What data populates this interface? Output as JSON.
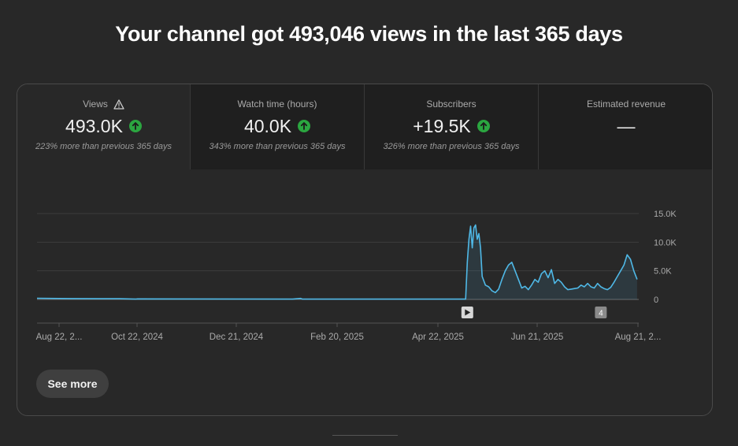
{
  "headline": "Your channel got 493,046 views in the last 365 days",
  "tabs": [
    {
      "label": "Views",
      "value": "493.0K",
      "delta": "223% more than previous 365 days",
      "trend": "up",
      "warning": true,
      "selected": true
    },
    {
      "label": "Watch time (hours)",
      "value": "40.0K",
      "delta": "343% more than previous 365 days",
      "trend": "up",
      "warning": false,
      "selected": false
    },
    {
      "label": "Subscribers",
      "value": "+19.5K",
      "delta": "326% more than previous 365 days",
      "trend": "up",
      "warning": false,
      "selected": false
    },
    {
      "label": "Estimated revenue",
      "value": "—",
      "delta": "",
      "trend": "none",
      "warning": false,
      "selected": false
    }
  ],
  "chart_data": {
    "type": "area",
    "title": "",
    "xlabel": "",
    "ylabel": "",
    "x_ticks": [
      "Aug 22, 2...",
      "Oct 22, 2024",
      "Dec 21, 2024",
      "Feb 20, 2025",
      "Apr 22, 2025",
      "Jun 21, 2025",
      "Aug 21, 2..."
    ],
    "y_ticks": [
      "15.0K",
      "10.0K",
      "5.0K",
      "0"
    ],
    "ylim": [
      0,
      15000
    ],
    "x_days": 365,
    "grid": true,
    "y_axis_side": "right",
    "series": [
      {
        "color": "#4fb8e6",
        "points": [
          [
            0,
            200
          ],
          [
            20,
            150
          ],
          [
            40,
            120
          ],
          [
            50,
            130
          ],
          [
            60,
            60
          ],
          [
            61,
            100
          ],
          [
            100,
            80
          ],
          [
            155,
            50
          ],
          [
            160,
            180
          ],
          [
            161,
            60
          ],
          [
            200,
            50
          ],
          [
            260,
            50
          ],
          [
            261,
            6500
          ],
          [
            262,
            10500
          ],
          [
            263,
            12800
          ],
          [
            264,
            9000
          ],
          [
            265,
            12500
          ],
          [
            266,
            13000
          ],
          [
            267,
            10500
          ],
          [
            268,
            11500
          ],
          [
            269,
            9000
          ],
          [
            270,
            4000
          ],
          [
            272,
            2500
          ],
          [
            274,
            2200
          ],
          [
            276,
            1500
          ],
          [
            278,
            1200
          ],
          [
            280,
            1800
          ],
          [
            282,
            3500
          ],
          [
            284,
            5000
          ],
          [
            286,
            6000
          ],
          [
            288,
            6500
          ],
          [
            290,
            5000
          ],
          [
            292,
            3500
          ],
          [
            294,
            2000
          ],
          [
            296,
            2300
          ],
          [
            298,
            1700
          ],
          [
            300,
            2500
          ],
          [
            302,
            3500
          ],
          [
            304,
            3000
          ],
          [
            306,
            4500
          ],
          [
            308,
            5000
          ],
          [
            310,
            3800
          ],
          [
            312,
            5200
          ],
          [
            314,
            2800
          ],
          [
            316,
            3500
          ],
          [
            318,
            3000
          ],
          [
            320,
            2200
          ],
          [
            322,
            1700
          ],
          [
            324,
            1800
          ],
          [
            326,
            1900
          ],
          [
            328,
            2000
          ],
          [
            330,
            2500
          ],
          [
            332,
            2200
          ],
          [
            334,
            2800
          ],
          [
            336,
            2200
          ],
          [
            338,
            2000
          ],
          [
            340,
            2800
          ],
          [
            342,
            2200
          ],
          [
            344,
            1900
          ],
          [
            346,
            1700
          ],
          [
            348,
            2100
          ],
          [
            350,
            3000
          ],
          [
            352,
            4000
          ],
          [
            354,
            5000
          ],
          [
            356,
            6000
          ],
          [
            358,
            7800
          ],
          [
            360,
            7000
          ],
          [
            362,
            5000
          ],
          [
            364,
            3500
          ]
        ]
      }
    ],
    "markers": [
      {
        "day": 261,
        "label": "",
        "kind": "play"
      },
      {
        "day": 342,
        "label": "4",
        "kind": "count"
      }
    ]
  },
  "see_more": "See more",
  "colors": {
    "accent": "#4fb8e6",
    "trend_up": "#2ba640",
    "background": "#282828"
  }
}
